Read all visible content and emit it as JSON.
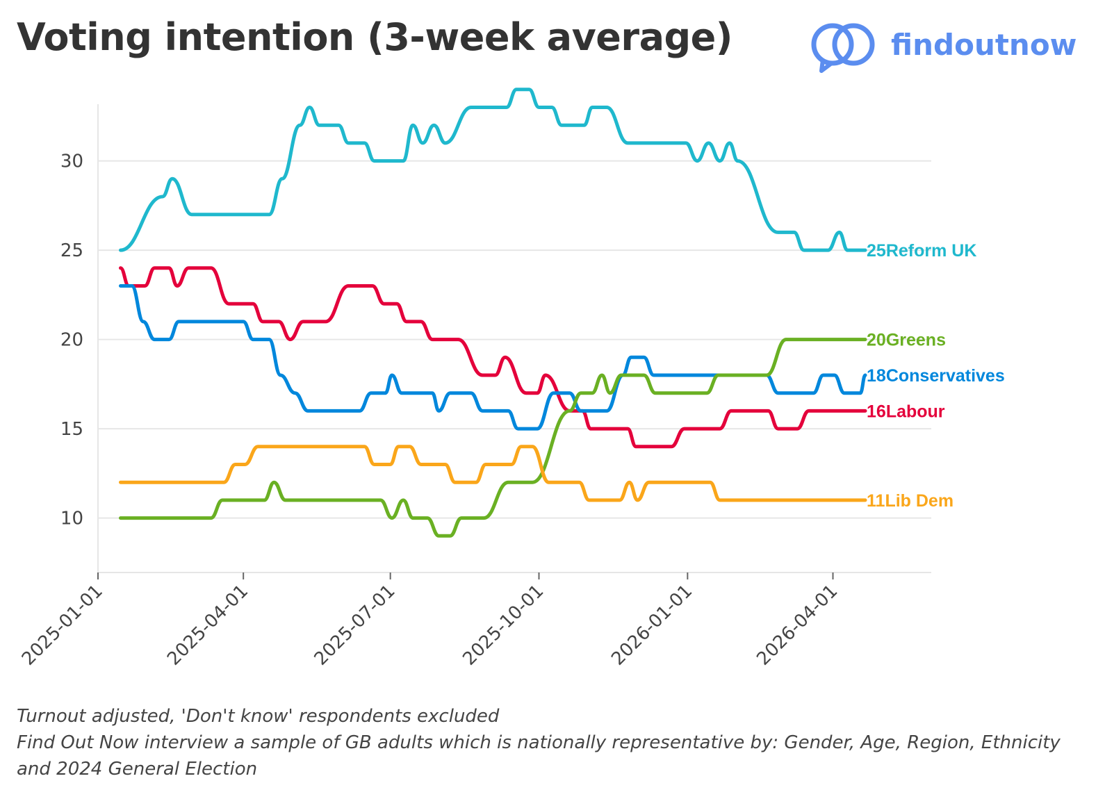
{
  "title": "Voting intention (3-week average)",
  "logo": {
    "text": "findoutnow",
    "icon": "interlocking-rings-icon",
    "color": "#5b8def"
  },
  "notes": [
    "Turnout adjusted, 'Don't know' respondents excluded",
    "Find Out Now interview a sample of GB adults which is nationally representative by: Gender, Age, Region, Ethnicity",
    "and 2024 General Election"
  ],
  "chart_data": {
    "type": "line",
    "title": "Voting intention (3-week average)",
    "xlabel": "",
    "ylabel": "",
    "x_range": [
      "2025-01-01",
      "2026-04-21"
    ],
    "ylim": [
      8,
      34.5
    ],
    "yticks": [
      10,
      15,
      20,
      25,
      30
    ],
    "yticks_labels": [
      "10",
      "15",
      "20",
      "25",
      "30"
    ],
    "xticks": [
      "2025-01-01",
      "2025-04-01",
      "2025-07-01",
      "2025-10-01",
      "2026-01-01",
      "2026-04-01"
    ],
    "grid": "horizontal",
    "legend": "end-of-line labels",
    "series": [
      {
        "name": "Reform UK",
        "color": "#1fb8cd",
        "end_label": "25",
        "points": [
          [
            "2025-01-15",
            25
          ],
          [
            "2025-02-10",
            28
          ],
          [
            "2025-02-16",
            29
          ],
          [
            "2025-02-28",
            27
          ],
          [
            "2025-04-17",
            27
          ],
          [
            "2025-04-25",
            29
          ],
          [
            "2025-05-06",
            32
          ],
          [
            "2025-05-12",
            33
          ],
          [
            "2025-05-18",
            32
          ],
          [
            "2025-05-30",
            32
          ],
          [
            "2025-06-05",
            31
          ],
          [
            "2025-06-15",
            31
          ],
          [
            "2025-06-21",
            30
          ],
          [
            "2025-07-09",
            30
          ],
          [
            "2025-07-15",
            32
          ],
          [
            "2025-07-21",
            31
          ],
          [
            "2025-07-28",
            32
          ],
          [
            "2025-08-04",
            31
          ],
          [
            "2025-08-20",
            33
          ],
          [
            "2025-09-11",
            33
          ],
          [
            "2025-09-17",
            34
          ],
          [
            "2025-09-25",
            34
          ],
          [
            "2025-10-01",
            33
          ],
          [
            "2025-10-09",
            33
          ],
          [
            "2025-10-15",
            32
          ],
          [
            "2025-10-29",
            32
          ],
          [
            "2025-11-03",
            33
          ],
          [
            "2025-11-12",
            33
          ],
          [
            "2025-11-25",
            31
          ],
          [
            "2025-12-31",
            31
          ],
          [
            "2026-01-07",
            30
          ],
          [
            "2026-01-14",
            31
          ],
          [
            "2026-01-21",
            30
          ],
          [
            "2026-01-27",
            31
          ],
          [
            "2026-02-01",
            30
          ],
          [
            "2026-02-26",
            26
          ],
          [
            "2026-03-08",
            26
          ],
          [
            "2026-03-14",
            25
          ],
          [
            "2026-03-29",
            25
          ],
          [
            "2026-04-05",
            26
          ],
          [
            "2026-04-10",
            25
          ],
          [
            "2026-04-21",
            25
          ]
        ]
      },
      {
        "name": "Labour",
        "color": "#e4003b",
        "end_label": "16",
        "points": [
          [
            "2025-01-15",
            24
          ],
          [
            "2025-01-20",
            23
          ],
          [
            "2025-01-30",
            23
          ],
          [
            "2025-02-05",
            24
          ],
          [
            "2025-02-14",
            24
          ],
          [
            "2025-02-19",
            23
          ],
          [
            "2025-02-26",
            24
          ],
          [
            "2025-03-12",
            24
          ],
          [
            "2025-03-23",
            22
          ],
          [
            "2025-04-07",
            22
          ],
          [
            "2025-04-13",
            21
          ],
          [
            "2025-04-23",
            21
          ],
          [
            "2025-04-30",
            20
          ],
          [
            "2025-05-08",
            21
          ],
          [
            "2025-05-22",
            21
          ],
          [
            "2025-06-05",
            23
          ],
          [
            "2025-06-20",
            23
          ],
          [
            "2025-06-27",
            22
          ],
          [
            "2025-07-05",
            22
          ],
          [
            "2025-07-11",
            21
          ],
          [
            "2025-07-20",
            21
          ],
          [
            "2025-07-27",
            20
          ],
          [
            "2025-08-12",
            20
          ],
          [
            "2025-08-27",
            18
          ],
          [
            "2025-09-04",
            18
          ],
          [
            "2025-09-10",
            19
          ],
          [
            "2025-09-23",
            17
          ],
          [
            "2025-09-30",
            17
          ],
          [
            "2025-10-05",
            18
          ],
          [
            "2025-10-20",
            16
          ],
          [
            "2025-10-28",
            16
          ],
          [
            "2025-11-02",
            15
          ],
          [
            "2025-11-25",
            15
          ],
          [
            "2025-11-30",
            14
          ],
          [
            "2025-12-22",
            14
          ],
          [
            "2025-12-30",
            15
          ],
          [
            "2026-01-21",
            15
          ],
          [
            "2026-01-28",
            16
          ],
          [
            "2026-02-20",
            16
          ],
          [
            "2026-02-26",
            15
          ],
          [
            "2026-03-10",
            15
          ],
          [
            "2026-03-17",
            16
          ],
          [
            "2026-04-21",
            16
          ]
        ]
      },
      {
        "name": "Conservatives",
        "color": "#0087dc",
        "end_label": "18",
        "points": [
          [
            "2025-01-15",
            23
          ],
          [
            "2025-01-22",
            23
          ],
          [
            "2025-01-29",
            21
          ],
          [
            "2025-02-05",
            20
          ],
          [
            "2025-02-14",
            20
          ],
          [
            "2025-02-20",
            21
          ],
          [
            "2025-04-01",
            21
          ],
          [
            "2025-04-07",
            20
          ],
          [
            "2025-04-17",
            20
          ],
          [
            "2025-04-24",
            18
          ],
          [
            "2025-05-03",
            17
          ],
          [
            "2025-05-11",
            16
          ],
          [
            "2025-06-12",
            16
          ],
          [
            "2025-06-19",
            17
          ],
          [
            "2025-06-28",
            17
          ],
          [
            "2025-07-02",
            18
          ],
          [
            "2025-07-08",
            17
          ],
          [
            "2025-07-27",
            17
          ],
          [
            "2025-07-31",
            16
          ],
          [
            "2025-08-07",
            17
          ],
          [
            "2025-08-20",
            17
          ],
          [
            "2025-08-27",
            16
          ],
          [
            "2025-09-12",
            16
          ],
          [
            "2025-09-18",
            15
          ],
          [
            "2025-09-30",
            15
          ],
          [
            "2025-10-10",
            17
          ],
          [
            "2025-10-20",
            17
          ],
          [
            "2025-10-27",
            16
          ],
          [
            "2025-11-12",
            16
          ],
          [
            "2025-11-22",
            18
          ],
          [
            "2025-11-27",
            19
          ],
          [
            "2025-12-05",
            19
          ],
          [
            "2025-12-11",
            18
          ],
          [
            "2026-01-20",
            18
          ],
          [
            "2026-02-19",
            18
          ],
          [
            "2026-02-26",
            17
          ],
          [
            "2026-03-20",
            17
          ],
          [
            "2026-03-26",
            18
          ],
          [
            "2026-04-02",
            18
          ],
          [
            "2026-04-08",
            17
          ],
          [
            "2026-04-18",
            17
          ],
          [
            "2026-04-21",
            18
          ]
        ]
      },
      {
        "name": "Greens",
        "color": "#6ab023",
        "end_label": "20",
        "points": [
          [
            "2025-01-15",
            10
          ],
          [
            "2025-03-12",
            10
          ],
          [
            "2025-03-19",
            11
          ],
          [
            "2025-04-14",
            11
          ],
          [
            "2025-04-20",
            12
          ],
          [
            "2025-04-27",
            11
          ],
          [
            "2025-06-25",
            11
          ],
          [
            "2025-07-02",
            10
          ],
          [
            "2025-07-09",
            11
          ],
          [
            "2025-07-15",
            10
          ],
          [
            "2025-07-24",
            10
          ],
          [
            "2025-07-31",
            9
          ],
          [
            "2025-08-07",
            9
          ],
          [
            "2025-08-14",
            10
          ],
          [
            "2025-08-28",
            10
          ],
          [
            "2025-09-12",
            12
          ],
          [
            "2025-09-27",
            12
          ],
          [
            "2025-10-20",
            16
          ],
          [
            "2025-10-27",
            17
          ],
          [
            "2025-11-03",
            17
          ],
          [
            "2025-11-09",
            18
          ],
          [
            "2025-11-14",
            17
          ],
          [
            "2025-11-21",
            18
          ],
          [
            "2025-12-05",
            18
          ],
          [
            "2025-12-12",
            17
          ],
          [
            "2026-01-13",
            17
          ],
          [
            "2026-01-20",
            18
          ],
          [
            "2026-02-19",
            18
          ],
          [
            "2026-03-03",
            20
          ],
          [
            "2026-04-21",
            20
          ]
        ]
      },
      {
        "name": "Lib Dem",
        "color": "#faa61a",
        "end_label": "11",
        "points": [
          [
            "2025-01-15",
            12
          ],
          [
            "2025-03-20",
            12
          ],
          [
            "2025-03-27",
            13
          ],
          [
            "2025-04-02",
            13
          ],
          [
            "2025-04-10",
            14
          ],
          [
            "2025-06-15",
            14
          ],
          [
            "2025-06-21",
            13
          ],
          [
            "2025-07-01",
            13
          ],
          [
            "2025-07-06",
            14
          ],
          [
            "2025-07-13",
            14
          ],
          [
            "2025-07-20",
            13
          ],
          [
            "2025-08-04",
            13
          ],
          [
            "2025-08-10",
            12
          ],
          [
            "2025-08-23",
            12
          ],
          [
            "2025-08-29",
            13
          ],
          [
            "2025-09-14",
            13
          ],
          [
            "2025-09-20",
            14
          ],
          [
            "2025-09-27",
            14
          ],
          [
            "2025-10-07",
            12
          ],
          [
            "2025-10-26",
            12
          ],
          [
            "2025-11-01",
            11
          ],
          [
            "2025-11-20",
            11
          ],
          [
            "2025-11-26",
            12
          ],
          [
            "2025-12-01",
            11
          ],
          [
            "2025-12-08",
            12
          ],
          [
            "2026-01-15",
            12
          ],
          [
            "2026-01-21",
            11
          ],
          [
            "2026-04-21",
            11
          ]
        ]
      }
    ]
  }
}
